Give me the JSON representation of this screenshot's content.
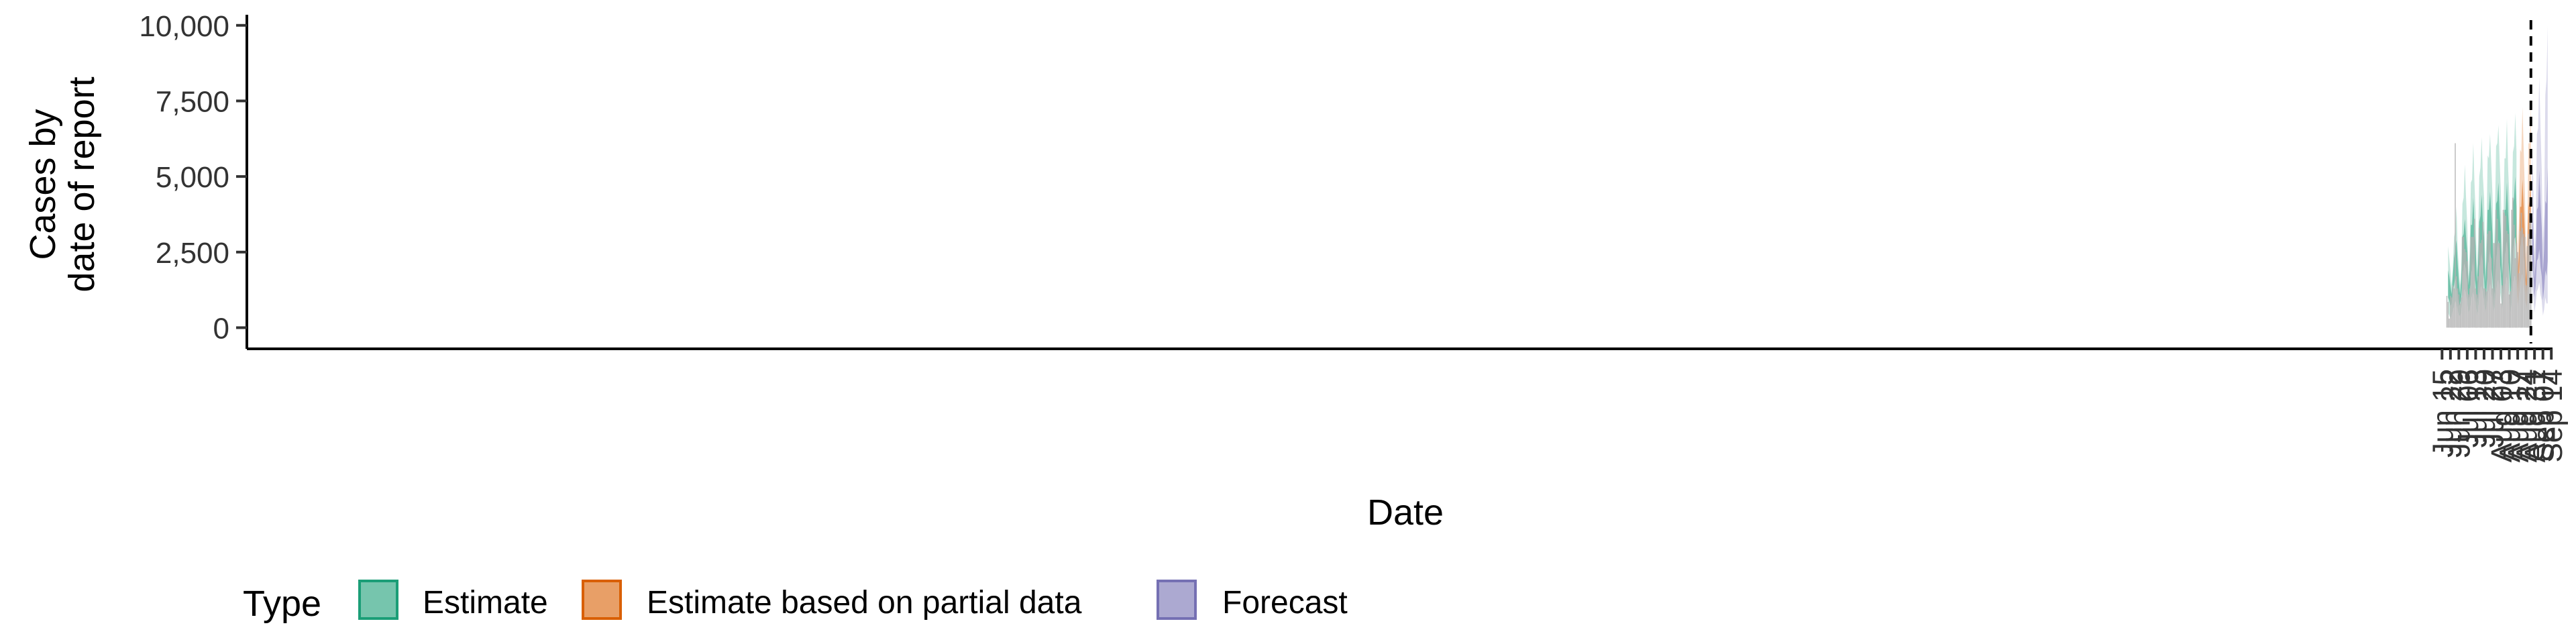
{
  "chart_data": {
    "type": "area",
    "xlabel": "Date",
    "ylabel_lines": [
      "Cases by",
      "date of report"
    ],
    "ylim": [
      -700,
      10350
    ],
    "y_ticks": [
      0,
      2500,
      5000,
      7500,
      10000
    ],
    "y_tick_labels": [
      "0",
      "2,500",
      "5,000",
      "7,500",
      "10,000"
    ],
    "x_ticks": [
      "2020-06-15",
      "2020-06-22",
      "2020-06-29",
      "2020-07-06",
      "2020-07-13",
      "2020-07-20",
      "2020-07-27",
      "2020-08-03",
      "2020-08-10",
      "2020-08-17",
      "2020-08-24",
      "2020-08-31",
      "2020-09-07",
      "2020-09-14"
    ],
    "x_tick_labels": [
      "Jun 15",
      "Jun 22",
      "Jun 29",
      "Jul 06",
      "Jul 13",
      "Jul 20",
      "Jul 27",
      "Aug 03",
      "Aug 10",
      "Aug 17",
      "Aug 24",
      "Aug 31",
      "Sep 07",
      "Sep 14"
    ],
    "xlim": [
      "2015-06-14",
      "2020-09-15"
    ],
    "forecast_date": "2020-08-28",
    "grid": false,
    "legend_position": "bottom-left",
    "legend": {
      "title": "Type",
      "items": [
        {
          "label": "Estimate",
          "color": "#1b9e77"
        },
        {
          "label": "Estimate based on partial data",
          "color": "#d95f02"
        },
        {
          "label": "Forecast",
          "color": "#7570b3"
        }
      ]
    },
    "reported_cases": {
      "color": "#b3b3b3",
      "dates": [
        "2020-06-19",
        "2020-06-20",
        "2020-06-21",
        "2020-06-22",
        "2020-06-23",
        "2020-06-24",
        "2020-06-25",
        "2020-06-26",
        "2020-06-27",
        "2020-06-28",
        "2020-06-29",
        "2020-06-30",
        "2020-07-01",
        "2020-07-02",
        "2020-07-03",
        "2020-07-04",
        "2020-07-05",
        "2020-07-06",
        "2020-07-07",
        "2020-07-08",
        "2020-07-09",
        "2020-07-10",
        "2020-07-11",
        "2020-07-12",
        "2020-07-13",
        "2020-07-14",
        "2020-07-15",
        "2020-07-16",
        "2020-07-17",
        "2020-07-18",
        "2020-07-19",
        "2020-07-20",
        "2020-07-21",
        "2020-07-22",
        "2020-07-23",
        "2020-07-24",
        "2020-07-25",
        "2020-07-26",
        "2020-07-27",
        "2020-07-28",
        "2020-07-29",
        "2020-07-30",
        "2020-07-31",
        "2020-08-01",
        "2020-08-02",
        "2020-08-03",
        "2020-08-04",
        "2020-08-05",
        "2020-08-06",
        "2020-08-07",
        "2020-08-08",
        "2020-08-09",
        "2020-08-10",
        "2020-08-11",
        "2020-08-12",
        "2020-08-13",
        "2020-08-14",
        "2020-08-15",
        "2020-08-16",
        "2020-08-17",
        "2020-08-18",
        "2020-08-19",
        "2020-08-20",
        "2020-08-21",
        "2020-08-22",
        "2020-08-23",
        "2020-08-24",
        "2020-08-25",
        "2020-08-26",
        "2020-08-27",
        "2020-08-28"
      ],
      "values": [
        1050,
        850,
        300,
        1050,
        1000,
        1400,
        1300,
        6100,
        1700,
        1300,
        1100,
        800,
        1000,
        3000,
        3000,
        2600,
        2500,
        2200,
        1100,
        1300,
        3000,
        3000,
        3000,
        3600,
        1300,
        1100,
        1700,
        3300,
        2800,
        2900,
        3500,
        1300,
        1300,
        1200,
        3100,
        3200,
        3200,
        2300,
        1300,
        2800,
        2800,
        3900,
        3600,
        2800,
        2800,
        800,
        1400,
        3900,
        3800,
        3700,
        3200,
        3100,
        1100,
        1200,
        3900,
        4300,
        3400,
        2300,
        2800,
        2500,
        1800,
        3200,
        3800,
        3300,
        3100,
        3000,
        1400,
        2700,
        3100,
        3900,
        3500
      ]
    },
    "series": [
      {
        "name": "Estimate",
        "color": "#1b9e77",
        "dates": [
          "2020-06-20",
          "2020-06-21",
          "2020-06-22",
          "2020-06-23",
          "2020-06-24",
          "2020-06-25",
          "2020-06-26",
          "2020-06-27",
          "2020-06-28",
          "2020-06-29",
          "2020-06-30",
          "2020-07-01",
          "2020-07-02",
          "2020-07-03",
          "2020-07-04",
          "2020-07-05",
          "2020-07-06",
          "2020-07-07",
          "2020-07-08",
          "2020-07-09",
          "2020-07-10",
          "2020-07-11",
          "2020-07-12",
          "2020-07-13",
          "2020-07-14",
          "2020-07-15",
          "2020-07-16",
          "2020-07-17",
          "2020-07-18",
          "2020-07-19",
          "2020-07-20",
          "2020-07-21",
          "2020-07-22",
          "2020-07-23",
          "2020-07-24",
          "2020-07-25",
          "2020-07-26",
          "2020-07-27",
          "2020-07-28",
          "2020-07-29",
          "2020-07-30",
          "2020-07-31",
          "2020-08-01",
          "2020-08-02",
          "2020-08-03",
          "2020-08-04",
          "2020-08-05",
          "2020-08-06",
          "2020-08-07",
          "2020-08-08",
          "2020-08-09",
          "2020-08-10",
          "2020-08-11",
          "2020-08-12",
          "2020-08-13",
          "2020-08-14",
          "2020-08-15",
          "2020-08-16"
        ],
        "lower_90": [
          500,
          400,
          300,
          400,
          600,
          700,
          900,
          800,
          600,
          400,
          400,
          500,
          900,
          1200,
          1300,
          1100,
          900,
          500,
          600,
          900,
          1100,
          1200,
          1000,
          800,
          400,
          600,
          1000,
          1300,
          1400,
          1100,
          900,
          500,
          700,
          1100,
          1300,
          1500,
          1300,
          900,
          500,
          800,
          1200,
          1500,
          1600,
          1300,
          1000,
          600,
          900,
          1300,
          1600,
          1700,
          1400,
          1000,
          500,
          900,
          1400,
          1700,
          1700,
          1400
        ],
        "upper_90": [
          2700,
          2300,
          1900,
          1400,
          2000,
          3000,
          3200,
          4000,
          2600,
          2000,
          1400,
          2000,
          4100,
          4300,
          5400,
          4300,
          3400,
          1700,
          2500,
          4800,
          4900,
          6100,
          4800,
          3800,
          1900,
          2800,
          5000,
          5300,
          6300,
          5000,
          4300,
          1900,
          3000,
          5700,
          5600,
          6400,
          5400,
          4400,
          2100,
          3600,
          6000,
          6100,
          6700,
          5500,
          4500,
          2300,
          3200,
          5600,
          5600,
          6900,
          5300,
          4300,
          2100,
          3200,
          5800,
          6000,
          7100,
          5800
        ],
        "lower_50": [
          1000,
          900,
          700,
          800,
          1200,
          1400,
          1700,
          1400,
          1100,
          700,
          800,
          1000,
          1700,
          2000,
          2200,
          1800,
          1500,
          900,
          1100,
          1700,
          2000,
          2300,
          1800,
          1400,
          800,
          1100,
          1900,
          2200,
          2500,
          2000,
          1600,
          900,
          1200,
          2000,
          2300,
          2600,
          2200,
          1600,
          900,
          1400,
          2200,
          2600,
          2900,
          2300,
          1800,
          1100,
          1500,
          2300,
          2700,
          2900,
          2400,
          1800,
          1000,
          1600,
          2500,
          2900,
          3000,
          2400
        ],
        "upper_50": [
          1900,
          1700,
          1400,
          1100,
          1700,
          2300,
          2600,
          2900,
          2100,
          1500,
          1100,
          1600,
          3000,
          3100,
          3600,
          3000,
          2500,
          1400,
          1900,
          3400,
          3400,
          4300,
          3400,
          2700,
          1500,
          2100,
          3500,
          3700,
          4400,
          3500,
          3000,
          1500,
          2200,
          3900,
          3900,
          4500,
          3800,
          3100,
          1600,
          2600,
          4100,
          4200,
          4800,
          3800,
          3100,
          1700,
          2400,
          3900,
          3900,
          4800,
          3800,
          3100,
          1600,
          2400,
          4100,
          4300,
          5000,
          4000
        ]
      },
      {
        "name": "Estimate based on partial data",
        "color": "#d95f02",
        "dates": [
          "2020-08-16",
          "2020-08-17",
          "2020-08-18",
          "2020-08-19",
          "2020-08-20",
          "2020-08-21",
          "2020-08-22",
          "2020-08-23",
          "2020-08-24",
          "2020-08-25",
          "2020-08-26",
          "2020-08-27",
          "2020-08-28"
        ],
        "lower_90": [
          1400,
          700,
          1000,
          1400,
          1700,
          1800,
          1500,
          1100,
          600,
          900,
          1500,
          1800,
          2000
        ],
        "upper_90": [
          4300,
          2300,
          3500,
          5900,
          5800,
          7300,
          5900,
          4500,
          2300,
          3400,
          6100,
          6100,
          7400
        ],
        "lower_50": [
          2400,
          1200,
          1700,
          2500,
          2900,
          3100,
          2500,
          1900,
          1100,
          1600,
          2600,
          3000,
          3200
        ],
        "upper_50": [
          3100,
          1700,
          2400,
          4000,
          4000,
          4900,
          4000,
          3100,
          1600,
          2300,
          4000,
          4200,
          5100
        ]
      },
      {
        "name": "Forecast",
        "color": "#7570b3",
        "dates": [
          "2020-08-29",
          "2020-08-30",
          "2020-08-31",
          "2020-09-01",
          "2020-09-02",
          "2020-09-03",
          "2020-09-04",
          "2020-09-05",
          "2020-09-06",
          "2020-09-07",
          "2020-09-08",
          "2020-09-09",
          "2020-09-10",
          "2020-09-11"
        ],
        "lower_90": [
          1300,
          1000,
          500,
          800,
          1200,
          1300,
          1500,
          1100,
          900,
          400,
          600,
          1000,
          800,
          800
        ],
        "upper_90": [
          5800,
          4800,
          2300,
          3200,
          6400,
          6600,
          8300,
          6600,
          5200,
          2800,
          3800,
          7700,
          8200,
          10000
        ],
        "lower_50": [
          2300,
          1900,
          1000,
          1400,
          2200,
          2300,
          2600,
          2000,
          1700,
          900,
          1300,
          1900,
          1700,
          2200
        ],
        "upper_50": [
          3800,
          3200,
          1600,
          2200,
          3900,
          4000,
          5200,
          4100,
          3300,
          1800,
          2600,
          4200,
          4100,
          5300
        ]
      }
    ]
  }
}
